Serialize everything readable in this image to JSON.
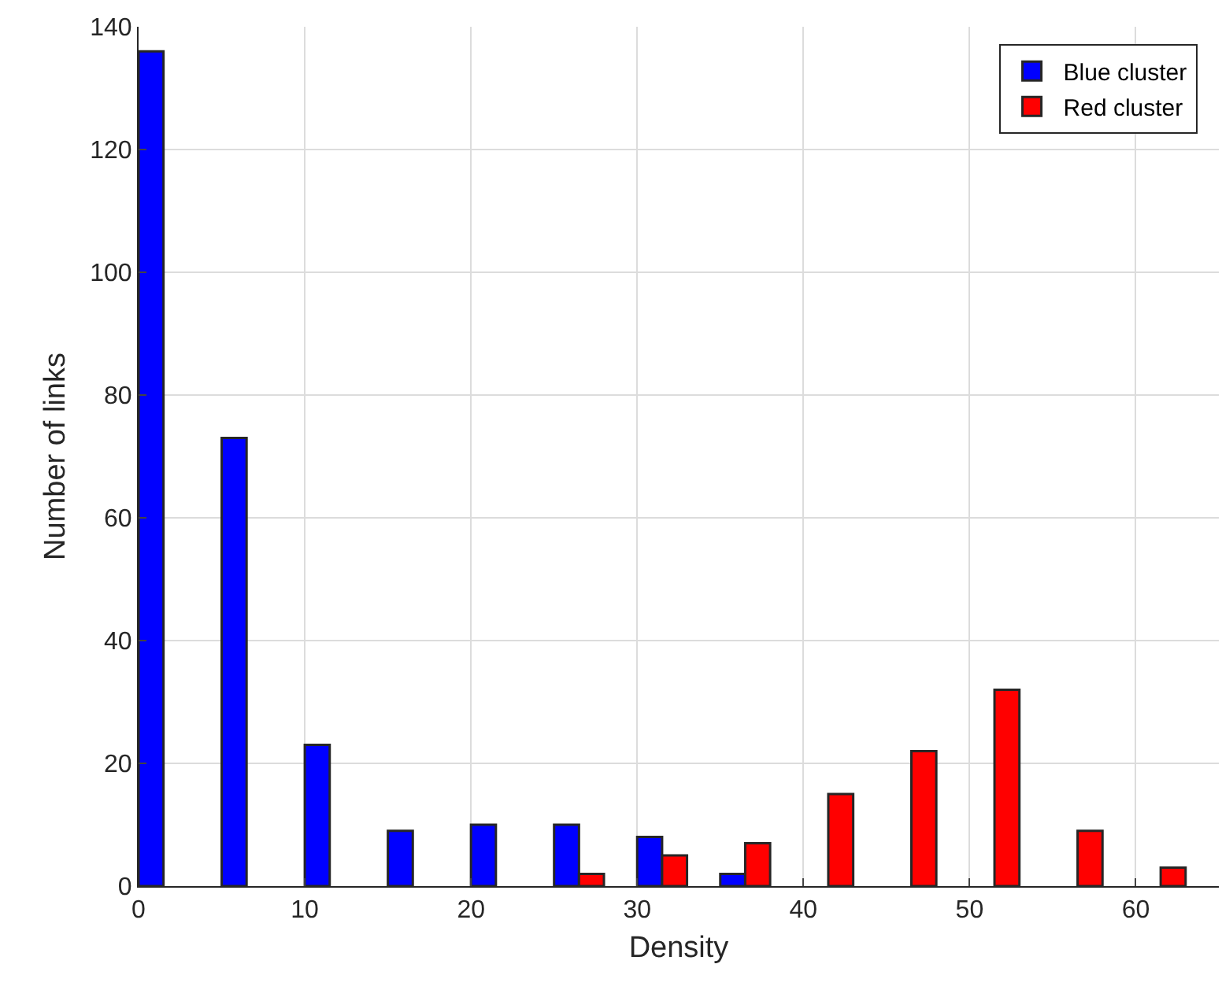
{
  "chart_data": {
    "type": "bar",
    "xlabel": "Density",
    "ylabel": "Number of links",
    "series": [
      {
        "name": "Blue cluster",
        "color": "#0000ff",
        "x": [
          0.75,
          5.75,
          10.75,
          15.75,
          20.75,
          25.75,
          30.75,
          35.75
        ],
        "values": [
          136,
          73,
          23,
          9,
          10,
          10,
          8,
          2
        ]
      },
      {
        "name": "Red cluster",
        "color": "#ff0000",
        "x": [
          27.25,
          32.25,
          37.25,
          42.25,
          47.25,
          52.25,
          57.25,
          62.25
        ],
        "values": [
          2,
          5,
          7,
          15,
          22,
          32,
          9,
          3
        ]
      }
    ],
    "xlim": [
      0,
      65
    ],
    "xticks": [
      0,
      10,
      20,
      30,
      40,
      50,
      60
    ],
    "ylim": [
      0,
      140
    ],
    "yticks": [
      0,
      20,
      40,
      60,
      80,
      100,
      120,
      140
    ],
    "grid": true,
    "legend": "top right"
  }
}
